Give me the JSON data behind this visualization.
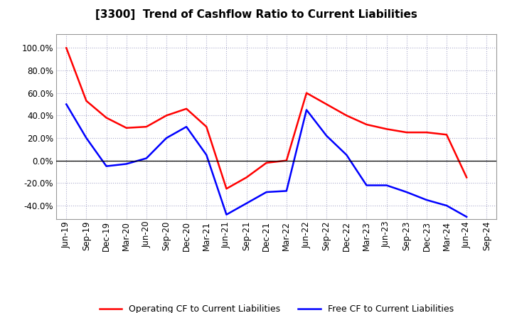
{
  "title": "[3300]  Trend of Cashflow Ratio to Current Liabilities",
  "x_labels": [
    "Jun-19",
    "Sep-19",
    "Dec-19",
    "Mar-20",
    "Jun-20",
    "Sep-20",
    "Dec-20",
    "Mar-21",
    "Jun-21",
    "Sep-21",
    "Dec-21",
    "Mar-22",
    "Jun-22",
    "Sep-22",
    "Dec-22",
    "Mar-23",
    "Jun-23",
    "Sep-23",
    "Dec-23",
    "Mar-24",
    "Jun-24",
    "Sep-24"
  ],
  "operating_cf": [
    100.0,
    53.0,
    38.0,
    29.0,
    30.0,
    40.0,
    46.0,
    30.0,
    -25.0,
    -15.0,
    -2.0,
    0.0,
    60.0,
    50.0,
    40.0,
    32.0,
    28.0,
    25.0,
    25.0,
    23.0,
    -15.0,
    null
  ],
  "free_cf": [
    50.0,
    20.0,
    -5.0,
    -3.0,
    2.0,
    20.0,
    30.0,
    5.0,
    -48.0,
    -38.0,
    -28.0,
    -27.0,
    45.0,
    22.0,
    5.0,
    -22.0,
    -22.0,
    -28.0,
    -35.0,
    -40.0,
    -50.0,
    null
  ],
  "operating_color": "#ff0000",
  "free_color": "#0000ff",
  "ylim": [
    -52.0,
    112.0
  ],
  "yticks": [
    -40.0,
    -20.0,
    0.0,
    20.0,
    40.0,
    60.0,
    80.0,
    100.0
  ],
  "background_color": "#ffffff",
  "plot_bg_color": "#ffffff",
  "grid_color": "#aaaacc",
  "legend_op": "Operating CF to Current Liabilities",
  "legend_free": "Free CF to Current Liabilities",
  "title_fontsize": 11,
  "tick_fontsize": 8.5,
  "legend_fontsize": 9
}
